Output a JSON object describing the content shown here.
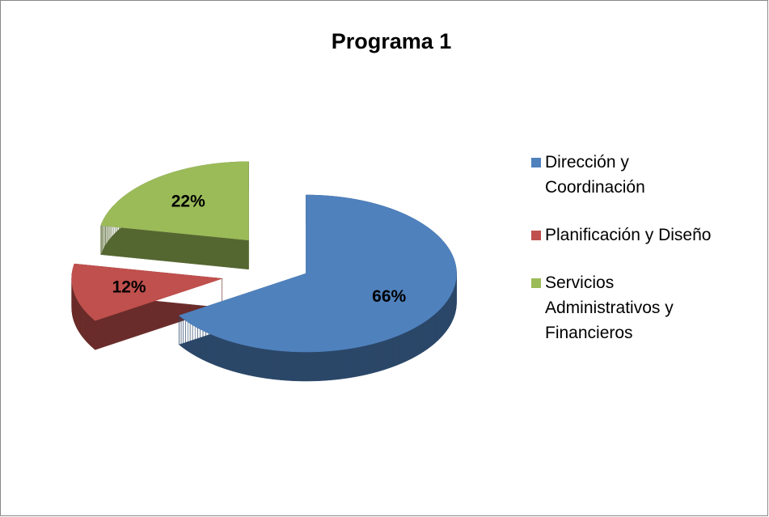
{
  "chart_data": {
    "type": "pie",
    "title": "Programa 1",
    "categories": [
      "Dirección y Coordinación",
      "Planificación y Diseño",
      "Servicios Administrativos y Financieros"
    ],
    "values": [
      66,
      12,
      22
    ],
    "value_labels": [
      "66%",
      "12%",
      "22%"
    ],
    "colors": [
      "#4f81bd",
      "#c0504d",
      "#9bbb59"
    ],
    "legend": "right"
  }
}
